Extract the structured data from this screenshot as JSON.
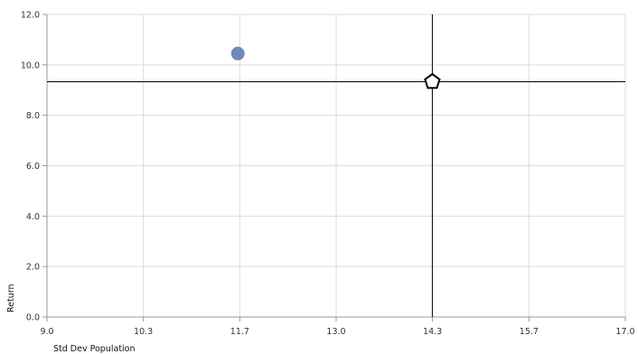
{
  "chart_data": {
    "type": "scatter",
    "xlabel": "Std Dev Population",
    "ylabel": "Return",
    "xlim": [
      9.0,
      17.0
    ],
    "ylim": [
      0.0,
      12.0
    ],
    "x_ticks": [
      "9.0",
      "10.3",
      "11.7",
      "13.0",
      "14.3",
      "15.7",
      "17.0"
    ],
    "x_tick_values": [
      9.0,
      10.333,
      11.667,
      13.0,
      14.333,
      15.667,
      17.0
    ],
    "y_ticks": [
      "0.0",
      "2.0",
      "4.0",
      "6.0",
      "8.0",
      "10.0",
      "12.0"
    ],
    "y_tick_values": [
      0,
      2,
      4,
      6,
      8,
      10,
      12
    ],
    "grid": true,
    "points": [
      {
        "x": 11.64,
        "y": 10.45,
        "marker": "circle",
        "color": "#6f8ab8"
      },
      {
        "x": 14.33,
        "y": 9.33,
        "marker": "pentagon",
        "color": "#ffffff"
      }
    ],
    "reference_lines": {
      "x": 14.33,
      "y": 9.33,
      "color": "#000000"
    },
    "grid_color": "#dcdcdc",
    "axis_color": "#999999"
  }
}
